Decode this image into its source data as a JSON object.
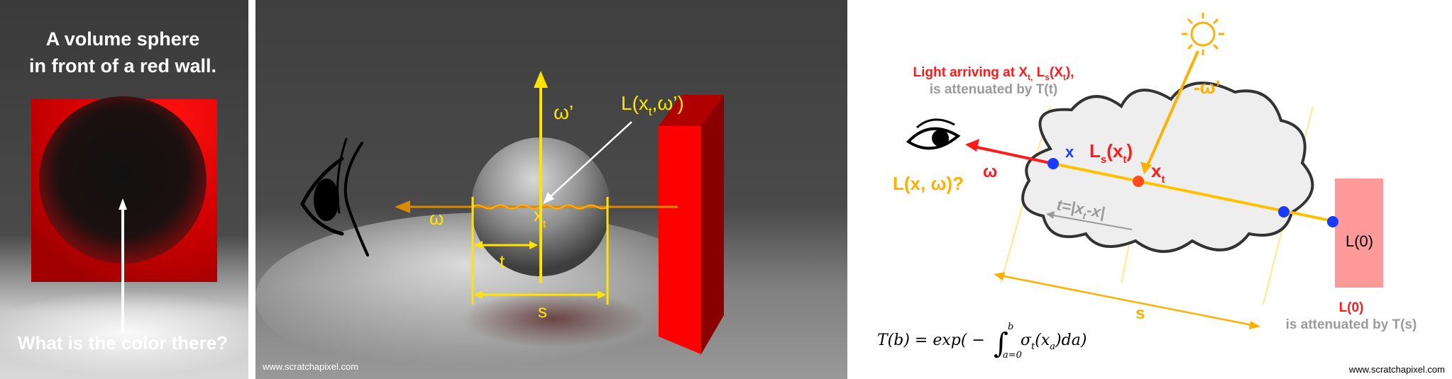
{
  "panel1": {
    "title_line1": "A volume sphere",
    "title_line2": "in front of a red wall.",
    "question": "What is the color there?"
  },
  "panel2": {
    "omega_prime": "ω’",
    "radiance_label_pre": "L(x",
    "radiance_label_sub": "t",
    "radiance_label_post": ",ω’)",
    "omega": "ω",
    "xt_base": "x",
    "xt_sub": "t",
    "t_label": "t",
    "s_label": "s",
    "watermark": "www.scratchapixel.com"
  },
  "panel3": {
    "light_line1_pre": "Light arriving at X",
    "light_line1_sub1": "t,",
    "light_line1_mid": " L",
    "light_line1_sub2": "s",
    "light_line1_mid2": "(X",
    "light_line1_sub3": "t",
    "light_line1_post": "),",
    "light_line2": "is attenuated by T(t)",
    "neg_omega_prime": "-ω’",
    "x_label": "x",
    "ls_base": "L",
    "ls_sub": "s",
    "ls_mid": "(x",
    "ls_sub2": "t",
    "ls_post": ")",
    "xt_base": "x",
    "xt_sub": "t",
    "omega": "ω",
    "lxw": "L(x, ω)?",
    "t_eq_pre": "t=|x",
    "t_eq_sub": "t",
    "t_eq_post": "-x|",
    "l0_right": "L(0)",
    "s_label": "s",
    "l0_bottom": "L(0)",
    "attenuated_ts": "is attenuated by T(s)",
    "formula_lhs": "T(b) = exp( −",
    "formula_integrand": "σ",
    "formula_integrand_sub": "t",
    "formula_rest": "(x",
    "formula_rest_sub": "a",
    "formula_end": ")da)",
    "formula_upper": "b",
    "formula_lower": "a=0",
    "watermark": "www.scratchapixel.com"
  },
  "colors": {
    "yellow": "#ffe400",
    "orange": "#ffb000",
    "red": "#ff1a1a",
    "blue": "#1a3bff",
    "gray_text": "#9a9a9a"
  }
}
